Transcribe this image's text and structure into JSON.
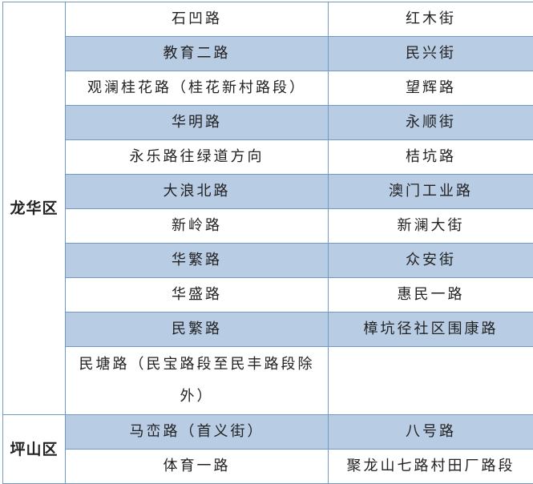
{
  "districts": [
    {
      "name": "龙华区",
      "rows": [
        [
          "石凹路",
          "红木街"
        ],
        [
          "教育二路",
          "民兴街"
        ],
        [
          "观澜桂花路（桂花新村路段）",
          "望辉路"
        ],
        [
          "华明路",
          "永顺街"
        ],
        [
          "永乐路往绿道方向",
          "桔坑路"
        ],
        [
          "大浪北路",
          "澳门工业路"
        ],
        [
          "新岭路",
          "新澜大街"
        ],
        [
          "华繁路",
          "众安街"
        ],
        [
          "华盛路",
          "惠民一路"
        ],
        [
          "民繁路",
          "樟坑径社区围康路"
        ],
        [
          "民塘路（民宝路段至民丰路段除外）",
          ""
        ]
      ]
    },
    {
      "name": "坪山区",
      "rows": [
        [
          "马峦路（首义街）",
          "八号路"
        ],
        [
          "体育一路",
          "聚龙山七路村田厂路段"
        ]
      ]
    }
  ],
  "colors": {
    "shaded_row": "#b8cce4",
    "border": "#7199c8"
  }
}
